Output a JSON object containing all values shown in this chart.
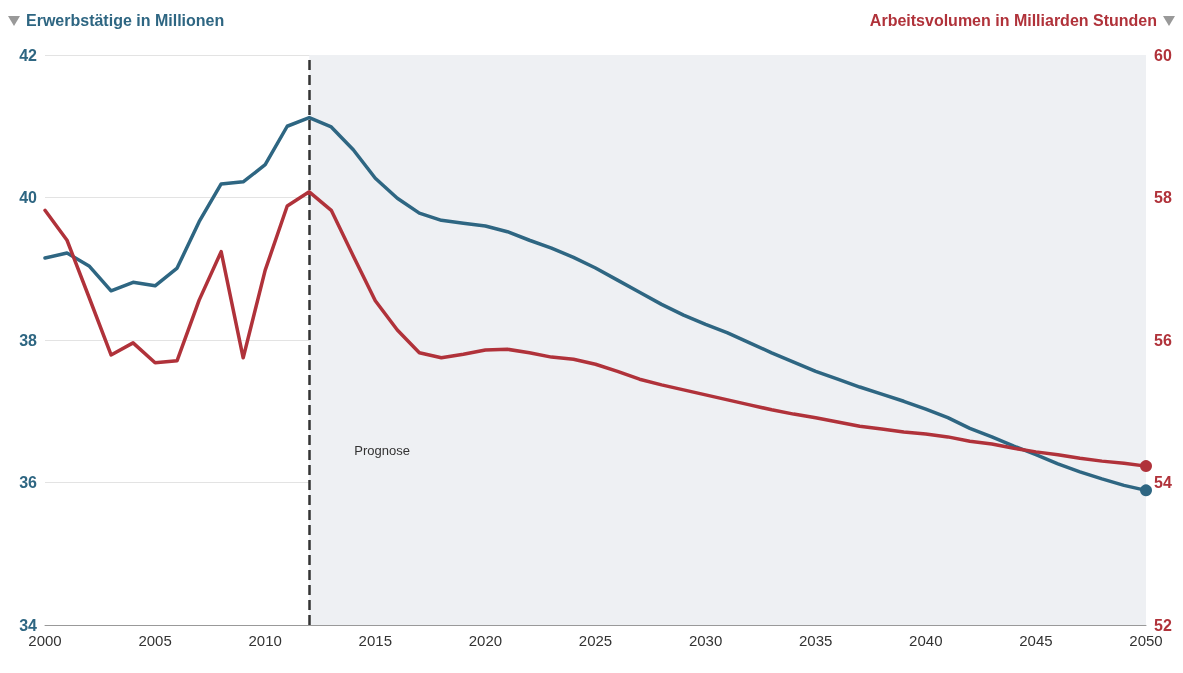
{
  "chart_data": {
    "type": "line",
    "ylabel": "Erwerbstätige in Millionen",
    "y2label": "Arbeitsvolumen in Milliarden Stunden",
    "x": [
      2000,
      2001,
      2002,
      2003,
      2004,
      2005,
      2006,
      2007,
      2008,
      2009,
      2010,
      2011,
      2012,
      2013,
      2014,
      2015,
      2016,
      2017,
      2018,
      2019,
      2020,
      2021,
      2022,
      2023,
      2024,
      2025,
      2026,
      2027,
      2028,
      2029,
      2030,
      2031,
      2032,
      2033,
      2034,
      2035,
      2036,
      2037,
      2038,
      2039,
      2040,
      2041,
      2042,
      2043,
      2044,
      2045,
      2046,
      2047,
      2048,
      2049,
      2050
    ],
    "series": [
      {
        "color": "#2e6682",
        "values": [
          39.15,
          39.22,
          39.04,
          38.69,
          38.81,
          38.76,
          39.01,
          39.66,
          40.19,
          40.22,
          40.46,
          41.0,
          41.12,
          40.99,
          40.67,
          40.27,
          39.99,
          39.78,
          39.68,
          39.64,
          39.6,
          39.52,
          39.4,
          39.29,
          39.16,
          39.01,
          38.84,
          38.67,
          38.5,
          38.35,
          38.22,
          38.1,
          37.96,
          37.82,
          37.69,
          37.56,
          37.45,
          37.34,
          37.24,
          37.14,
          37.03,
          36.91,
          36.76,
          36.64,
          36.51,
          36.39,
          36.26,
          36.15,
          36.05,
          35.96,
          35.89
        ]
      },
      {
        "color": "#b0323a",
        "axis": "y2",
        "values": [
          57.82,
          57.4,
          56.6,
          55.79,
          55.96,
          55.68,
          55.71,
          56.56,
          57.24,
          55.75,
          56.98,
          57.88,
          58.08,
          57.82,
          57.18,
          56.55,
          56.14,
          55.82,
          55.75,
          55.8,
          55.86,
          55.87,
          55.82,
          55.76,
          55.73,
          55.66,
          55.56,
          55.45,
          55.37,
          55.3,
          55.23,
          55.16,
          55.09,
          55.02,
          54.96,
          54.91,
          54.85,
          54.79,
          54.75,
          54.71,
          54.68,
          54.64,
          54.58,
          54.54,
          54.48,
          54.43,
          54.39,
          54.34,
          54.3,
          54.27,
          54.23
        ]
      }
    ],
    "xlim": [
      2000,
      2050
    ],
    "xticks": [
      2000,
      2005,
      2010,
      2015,
      2020,
      2025,
      2030,
      2035,
      2040,
      2045,
      2050
    ],
    "ylim": [
      34,
      42
    ],
    "yticks": [
      34,
      36,
      38,
      40,
      42
    ],
    "y2lim": [
      52,
      60
    ],
    "y2ticks": [
      52,
      54,
      56,
      58,
      60
    ],
    "ref_lines": [
      {
        "axis": "x",
        "value": 2012,
        "line_style": "dashed",
        "color": "#333333"
      }
    ],
    "bands": [
      {
        "axis": "x",
        "from": 2012,
        "to": 2050,
        "label": "Prognose",
        "color": "#eef0f3"
      }
    ],
    "grid": "y",
    "line_style": "solid"
  }
}
